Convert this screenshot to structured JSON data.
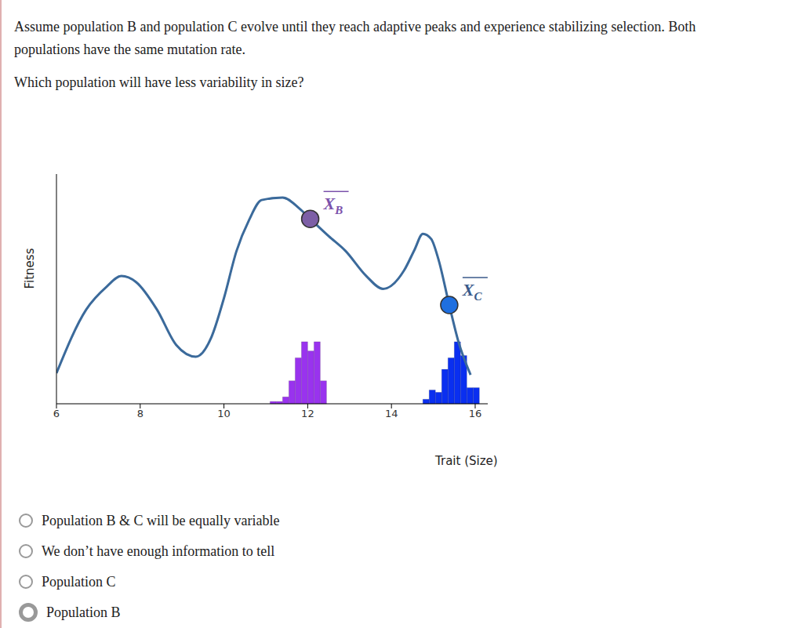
{
  "question": {
    "lines": [
      "Assume population B and population C evolve until they reach adaptive peaks and experience stabilizing selection. Both",
      "populations have the same mutation rate."
    ],
    "prompt": "Which population will have less variability in size?"
  },
  "chart_data": {
    "type": "line",
    "x_label": "Trait (Size)",
    "y_label": "Fitness",
    "x": [
      6,
      6.71,
      7.2,
      7.55,
      7.9,
      8.4,
      8.86,
      9.33,
      9.7,
      10.0,
      10.3,
      10.6,
      10.9,
      11.4,
      11.8,
      12.06,
      12.5,
      12.9,
      13.4,
      13.8,
      14.3,
      14.55,
      14.75,
      14.95,
      15.12,
      15.38,
      15.6,
      15.89
    ],
    "values": [
      13.3,
      41,
      51,
      55.6,
      53,
      41,
      25.6,
      20.5,
      29,
      46,
      66.5,
      80,
      88.7,
      89.8,
      85,
      80.5,
      73,
      66.6,
      55.6,
      50,
      58,
      67,
      74,
      71.7,
      63,
      43,
      27,
      12.6
    ],
    "color": "#3b6a9b",
    "xlim": [
      6,
      16.3
    ],
    "xticks": [
      6,
      8,
      10,
      12,
      14,
      16
    ],
    "ylim": [
      0,
      100
    ],
    "tick_labels": "x",
    "grid": false,
    "means": [
      {
        "label": "X",
        "subscript": "B",
        "x": 12.06,
        "value": 80.5,
        "color": "#7d5fa6",
        "label_color": "#7b52ab"
      },
      {
        "label": "X",
        "subscript": "C",
        "x": 15.38,
        "value": 43,
        "color": "#1e6fe0",
        "label_color": "#3a5a8a"
      }
    ],
    "histograms": [
      {
        "bins": [
          11.1,
          11.25,
          11.4,
          11.55,
          11.7,
          11.85,
          12.0,
          12.15,
          12.3,
          12.45
        ],
        "counts": [
          1,
          1,
          3,
          10,
          20,
          27,
          23,
          27,
          10
        ],
        "color": "#9933ee"
      },
      {
        "bins": [
          14.75,
          14.9,
          15.05,
          15.2,
          15.35,
          15.5,
          15.65,
          15.8,
          15.95,
          16.1
        ],
        "counts": [
          2,
          6,
          5,
          15,
          20,
          27,
          21,
          7,
          7
        ],
        "color": "#0a2ff0"
      }
    ]
  },
  "options": [
    "Population B & C will be equally variable",
    "We don’t have enough information to tell",
    "Population C",
    "Population B"
  ],
  "selected": "Population B"
}
